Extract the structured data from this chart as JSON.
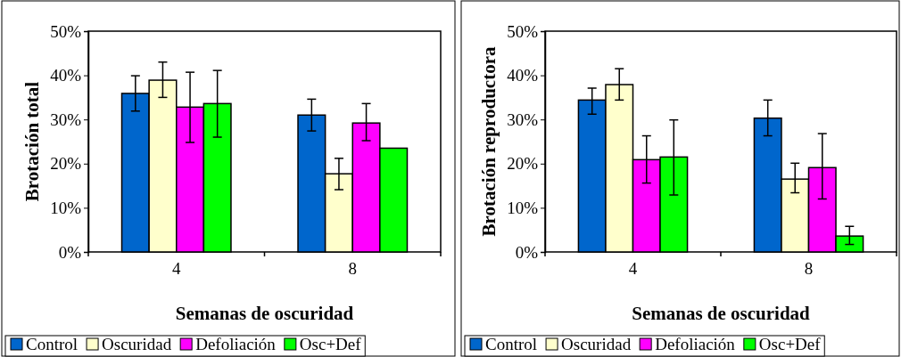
{
  "chart_data": [
    {
      "type": "bar",
      "xlabel": "Semanas de oscuridad",
      "ylabel": "Brotación total",
      "categories": [
        "4",
        "8"
      ],
      "ylim": [
        0,
        50
      ],
      "yticks": [
        {
          "value": 0,
          "label": "0%"
        },
        {
          "value": 10,
          "label": "10%"
        },
        {
          "value": 20,
          "label": "20%"
        },
        {
          "value": 30,
          "label": "30%"
        },
        {
          "value": 40,
          "label": "40%"
        },
        {
          "value": 50,
          "label": "50%"
        }
      ],
      "grid": false,
      "legend": "bottom",
      "series": [
        {
          "name": "Control",
          "color": "#0066cc",
          "values": [
            35.9,
            31.0
          ],
          "errors": [
            [
              31.9,
              39.9
            ],
            [
              27.4,
              34.6
            ]
          ]
        },
        {
          "name": "Oscuridad",
          "color": "#ffffcc",
          "values": [
            38.9,
            17.7
          ],
          "errors": [
            [
              35.0,
              43.0
            ],
            [
              14.1,
              21.2
            ]
          ]
        },
        {
          "name": "Defoliación",
          "color": "#ff00ff",
          "values": [
            32.8,
            29.2
          ],
          "errors": [
            [
              24.8,
              40.7
            ],
            [
              25.2,
              33.6
            ]
          ]
        },
        {
          "name": "Osc+Def",
          "color": "#00ff00",
          "values": [
            33.6,
            23.5
          ],
          "errors": [
            [
              26.0,
              41.1
            ],
            null
          ]
        }
      ]
    },
    {
      "type": "bar",
      "xlabel": "Semanas de oscuridad",
      "ylabel": "Brotación reproductora",
      "categories": [
        "4",
        "8"
      ],
      "ylim": [
        0,
        50
      ],
      "yticks": [
        {
          "value": 0,
          "label": "0%"
        },
        {
          "value": 10,
          "label": "10%"
        },
        {
          "value": 20,
          "label": "20%"
        },
        {
          "value": 30,
          "label": "30%"
        },
        {
          "value": 40,
          "label": "40%"
        },
        {
          "value": 50,
          "label": "50%"
        }
      ],
      "grid": false,
      "legend": "bottom",
      "series": [
        {
          "name": "Control",
          "color": "#0066cc",
          "values": [
            34.4,
            30.3
          ],
          "errors": [
            [
              31.2,
              37.1
            ],
            [
              26.3,
              34.4
            ]
          ]
        },
        {
          "name": "Oscuridad",
          "color": "#ffffcc",
          "values": [
            37.9,
            16.5
          ],
          "errors": [
            [
              34.4,
              41.5
            ],
            [
              13.4,
              20.1
            ]
          ]
        },
        {
          "name": "Defoliación",
          "color": "#ff00ff",
          "values": [
            20.9,
            19.1
          ],
          "errors": [
            [
              15.6,
              26.3
            ],
            [
              12.0,
              26.8
            ]
          ]
        },
        {
          "name": "Osc+Def",
          "color": "#00ff00",
          "values": [
            21.5,
            3.6
          ],
          "errors": [
            [
              12.9,
              29.9
            ],
            [
              1.7,
              5.8
            ]
          ]
        }
      ]
    }
  ]
}
